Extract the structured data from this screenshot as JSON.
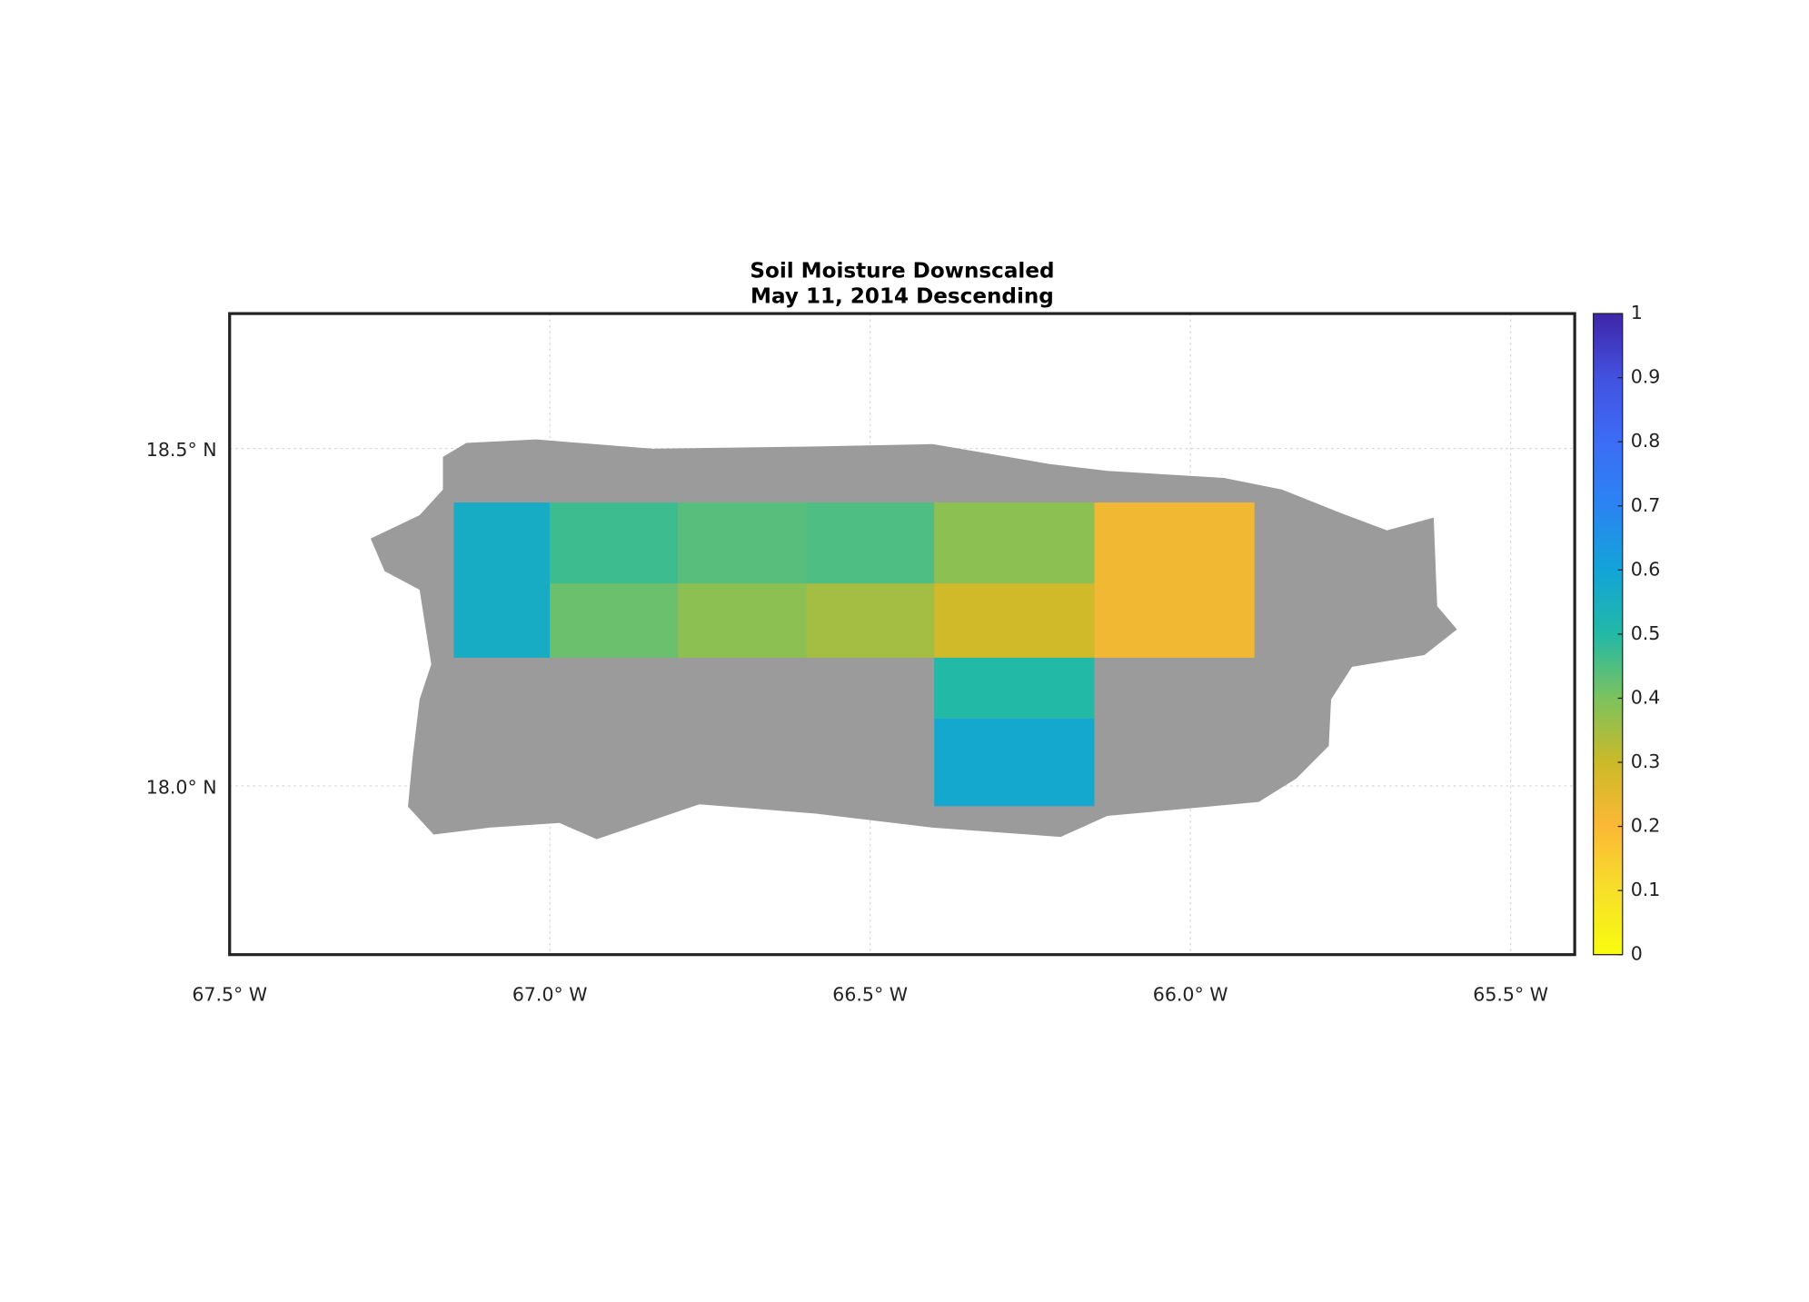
{
  "chart_data": {
    "type": "map",
    "title": "Soil Moisture Downscaled",
    "subtitle": "May 11, 2014 Descending",
    "xlim": [
      -67.5,
      -65.4
    ],
    "ylim": [
      17.75,
      18.7
    ],
    "xticks": [
      {
        "value": -67.5,
        "label": "67.5° W"
      },
      {
        "value": -67.0,
        "label": "67.0° W"
      },
      {
        "value": -66.5,
        "label": "66.5° W"
      },
      {
        "value": -66.0,
        "label": "66.0° W"
      },
      {
        "value": -65.5,
        "label": "65.5° W"
      }
    ],
    "yticks": [
      {
        "value": 18.0,
        "label": "18.0° N"
      },
      {
        "value": 18.5,
        "label": "18.5° N"
      }
    ],
    "grid": true,
    "clim": [
      0,
      1
    ],
    "colorbar_ticks": [
      0,
      0.1,
      0.2,
      0.3,
      0.4,
      0.5,
      0.6,
      0.7,
      0.8,
      0.9,
      1
    ],
    "colormap": [
      "#f9fb0e",
      "#f7e02a",
      "#fbb836",
      "#cbba28",
      "#7cc25e",
      "#22b9a6",
      "#12a4d8",
      "#2b84f2",
      "#3c6cf6",
      "#4351e0",
      "#3e26a8"
    ],
    "cells": [
      {
        "lon": [
          -67.15,
          -67.0
        ],
        "lat": [
          18.19,
          18.42
        ],
        "value": 0.56
      },
      {
        "lon": [
          -67.0,
          -66.8
        ],
        "lat": [
          18.3,
          18.42
        ],
        "value": 0.47
      },
      {
        "lon": [
          -67.0,
          -66.8
        ],
        "lat": [
          18.19,
          18.3
        ],
        "value": 0.42
      },
      {
        "lon": [
          -66.8,
          -66.6
        ],
        "lat": [
          18.3,
          18.42
        ],
        "value": 0.44
      },
      {
        "lon": [
          -66.8,
          -66.6
        ],
        "lat": [
          18.19,
          18.3
        ],
        "value": 0.38
      },
      {
        "lon": [
          -66.6,
          -66.4
        ],
        "lat": [
          18.3,
          18.42
        ],
        "value": 0.45
      },
      {
        "lon": [
          -66.6,
          -66.4
        ],
        "lat": [
          18.19,
          18.3
        ],
        "value": 0.35
      },
      {
        "lon": [
          -66.4,
          -66.15
        ],
        "lat": [
          18.3,
          18.42
        ],
        "value": 0.38
      },
      {
        "lon": [
          -66.4,
          -66.15
        ],
        "lat": [
          18.19,
          18.3
        ],
        "value": 0.29
      },
      {
        "lon": [
          -66.15,
          -65.9
        ],
        "lat": [
          18.19,
          18.42
        ],
        "value": 0.22
      },
      {
        "lon": [
          -66.4,
          -66.15
        ],
        "lat": [
          18.1,
          18.19
        ],
        "value": 0.5
      },
      {
        "lon": [
          -66.4,
          -66.15
        ],
        "lat": [
          17.97,
          18.1
        ],
        "value": 0.58
      }
    ]
  }
}
